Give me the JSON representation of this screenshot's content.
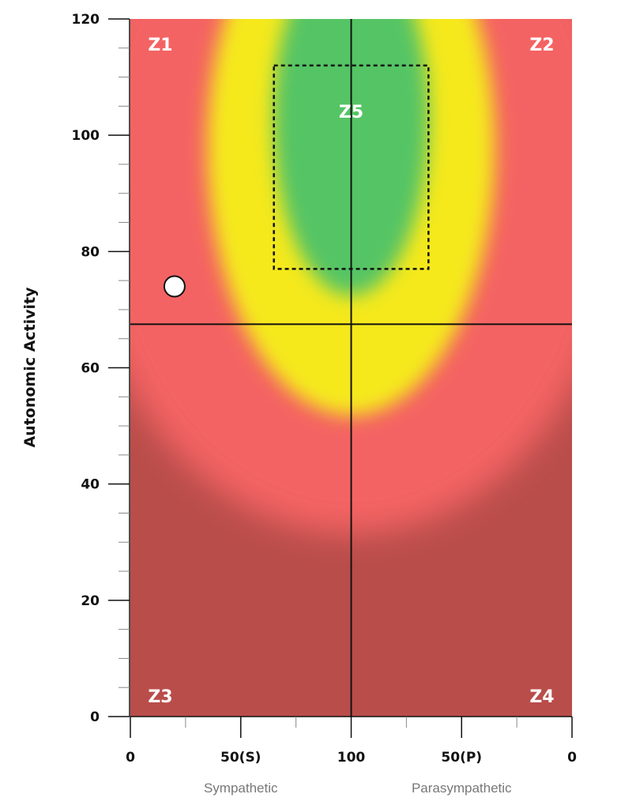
{
  "chart_data": {
    "type": "heatmap",
    "title": "",
    "ylabel": "Autonomic Activity",
    "ylim": [
      0,
      120
    ],
    "y_ticks": [
      0,
      20,
      40,
      60,
      80,
      100,
      120
    ],
    "y_minor_step": 5,
    "x_ticks": [
      "0",
      "50(S)",
      "100",
      "50(P)",
      "0"
    ],
    "x_sections": [
      "Sympathetic",
      "Parasympathetic"
    ],
    "crosshair": {
      "x_position": "center",
      "y": 67.5
    },
    "zones": [
      {
        "label": "Z1",
        "corner": "top-left"
      },
      {
        "label": "Z2",
        "corner": "top-right"
      },
      {
        "label": "Z3",
        "corner": "bottom-left"
      },
      {
        "label": "Z4",
        "corner": "bottom-right"
      },
      {
        "label": "Z5",
        "corner": "center"
      }
    ],
    "target_box": {
      "x_from": "S 65",
      "x_to": "P 65",
      "y_from": 77,
      "y_to": 112
    },
    "marker": {
      "side": "Sympathetic",
      "x": 20,
      "y": 74
    },
    "colors": {
      "dark_red": "#b94d4a",
      "red": "#f46464",
      "yellow": "#f5e91a",
      "green": "#54c465",
      "axis": "#111111",
      "marker_fill": "#ffffff"
    }
  }
}
